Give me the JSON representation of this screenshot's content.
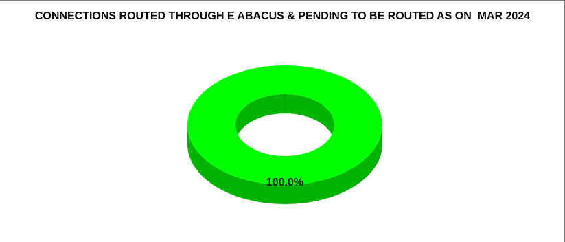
{
  "chart_data": {
    "type": "pie",
    "title": "CONNECTIONS ROUTED THROUGH E ABACUS & PENDING TO BE ROUTED AS ON  MAR 2024",
    "style": "3d-donut",
    "slices": [
      {
        "value": 100.0,
        "label": "100.0%",
        "color": "#00ff00",
        "side_color": "#00b300"
      }
    ],
    "legend": "none"
  }
}
